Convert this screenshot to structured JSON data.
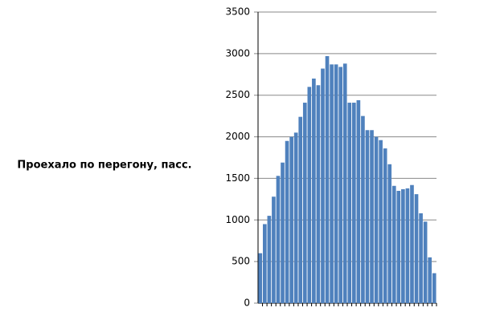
{
  "chart_data": {
    "type": "bar",
    "ylabel": "Проехало по перегону, пасс.",
    "categories": [
      null,
      null,
      null,
      null,
      null,
      null,
      null,
      null,
      null,
      null,
      null,
      null,
      null,
      null,
      null,
      null,
      null,
      null,
      null,
      null,
      null,
      null,
      null,
      null,
      null,
      null,
      null,
      null,
      null,
      null,
      null,
      null,
      null,
      null,
      null,
      null,
      null,
      null,
      null,
      null
    ],
    "values": [
      600,
      950,
      1050,
      1280,
      1530,
      1690,
      1950,
      2000,
      2050,
      2240,
      2410,
      2600,
      2700,
      2620,
      2820,
      2970,
      2870,
      2870,
      2840,
      2880,
      2410,
      2410,
      2440,
      2250,
      2080,
      2080,
      2000,
      1960,
      1860,
      1670,
      1410,
      1350,
      1370,
      1380,
      1420,
      1310,
      1080,
      980,
      550,
      360
    ],
    "color": "#4f81bd",
    "ylim": [
      0,
      3500
    ],
    "yticks": [
      0,
      500,
      1000,
      1500,
      2000,
      2500,
      3000,
      3500
    ],
    "grid": true
  }
}
